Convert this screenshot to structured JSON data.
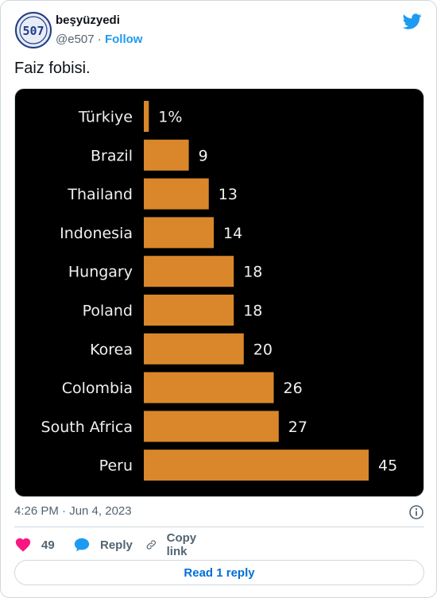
{
  "author": {
    "name": "beşyüzyedi",
    "handle": "@e507",
    "separator": "·",
    "follow_label": "Follow",
    "avatar_text": "507"
  },
  "tweet": {
    "text": "Faiz fobisi.",
    "timestamp": "4:26 PM · Jun 4, 2023"
  },
  "actions": {
    "like_count": "49",
    "reply_label": "Reply",
    "copy_link_label": "Copy link",
    "read_replies_label": "Read 1 reply"
  },
  "icons": {
    "brand": "twitter-bird-icon",
    "like": "heart-icon",
    "reply": "speech-bubble-icon",
    "copy": "link-icon",
    "info": "info-icon"
  },
  "colors": {
    "bar": "#d9872a",
    "chart_background": "#000000",
    "like": "#f91880",
    "reply": "#1d9bf0",
    "link_text": "#006fd6",
    "twitter_blue": "#1d9bf0"
  },
  "chart_data": {
    "type": "bar",
    "orientation": "horizontal",
    "categories": [
      "Türkiye",
      "Brazil",
      "Thailand",
      "Indonesia",
      "Hungary",
      "Poland",
      "Korea",
      "Colombia",
      "South Africa",
      "Peru"
    ],
    "values": [
      1,
      9,
      13,
      14,
      18,
      18,
      20,
      26,
      27,
      45
    ],
    "value_labels": [
      "1%",
      "9",
      "13",
      "14",
      "18",
      "18",
      "20",
      "26",
      "27",
      "45"
    ],
    "xlim": [
      0,
      45
    ],
    "grid": false
  }
}
